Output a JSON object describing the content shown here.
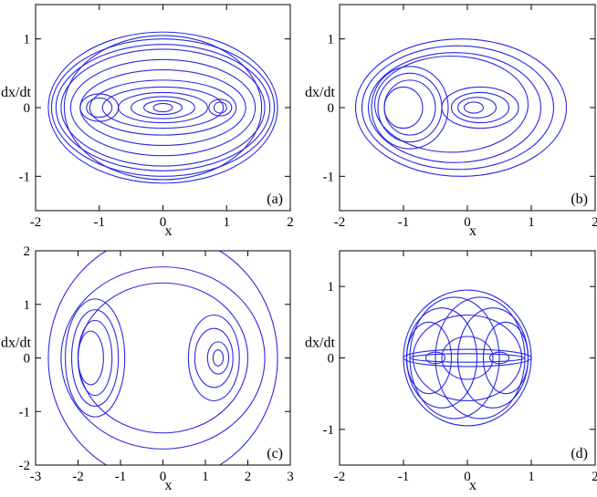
{
  "chart_data": [
    {
      "type": "line",
      "panel_label": "(a)",
      "xlabel": "x",
      "ylabel": "dx/dt",
      "xlim": [
        -2,
        2
      ],
      "ylim": [
        -1.5,
        1.5
      ],
      "xticks": [
        "-2",
        "-1",
        "0",
        "1",
        "2"
      ],
      "yticks": [
        "-1",
        "0",
        "1"
      ],
      "loops": [
        {
          "cx": 0,
          "cy": 0,
          "rx": 1.8,
          "ry": 1.1
        },
        {
          "cx": 0,
          "cy": 0,
          "rx": 1.75,
          "ry": 1.0
        },
        {
          "cx": 0,
          "cy": 0,
          "rx": 1.68,
          "ry": 0.92
        },
        {
          "cx": 0,
          "cy": 0,
          "rx": 1.6,
          "ry": 0.85
        },
        {
          "cx": 0,
          "cy": 0,
          "rx": 1.55,
          "ry": 1.05
        },
        {
          "cx": 0,
          "cy": 0,
          "rx": 1.45,
          "ry": 0.7
        },
        {
          "cx": 0,
          "cy": 0,
          "rx": 1.3,
          "ry": 0.55
        },
        {
          "cx": 0,
          "cy": 0,
          "rx": 1.15,
          "ry": 0.4
        },
        {
          "cx": 0,
          "cy": 0,
          "rx": 0.95,
          "ry": 0.3
        },
        {
          "cx": 0,
          "cy": 0,
          "rx": 0.7,
          "ry": 0.22
        },
        {
          "cx": 0,
          "cy": 0,
          "rx": 0.5,
          "ry": 0.16
        },
        {
          "cx": 0,
          "cy": 0,
          "rx": 0.3,
          "ry": 0.1
        },
        {
          "cx": 0,
          "cy": 0,
          "rx": 0.15,
          "ry": 0.06
        },
        {
          "cx": -1.0,
          "cy": 0,
          "rx": 0.3,
          "ry": 0.2
        },
        {
          "cx": -1.0,
          "cy": 0,
          "rx": 0.2,
          "ry": 0.14
        },
        {
          "cx": 0.9,
          "cy": 0,
          "rx": 0.18,
          "ry": 0.12
        },
        {
          "cx": 0.9,
          "cy": 0,
          "rx": 0.1,
          "ry": 0.08
        }
      ]
    },
    {
      "type": "line",
      "panel_label": "(b)",
      "xlabel": "x",
      "ylabel": "dx/dt",
      "xlim": [
        -2,
        2
      ],
      "ylim": [
        -1.5,
        1.5
      ],
      "xticks": [
        "-2",
        "-1",
        "0",
        "1",
        "2"
      ],
      "yticks": [
        "-1",
        "0",
        "1"
      ],
      "loops": [
        {
          "cx": -0.1,
          "cy": 0,
          "rx": 1.65,
          "ry": 1.0
        },
        {
          "cx": -0.15,
          "cy": 0,
          "rx": 1.5,
          "ry": 0.9
        },
        {
          "cx": -0.2,
          "cy": 0,
          "rx": 1.35,
          "ry": 0.8
        },
        {
          "cx": -0.25,
          "cy": 0.05,
          "rx": 1.2,
          "ry": 0.7
        },
        {
          "cx": -0.9,
          "cy": 0,
          "rx": 0.6,
          "ry": 0.6
        },
        {
          "cx": -0.9,
          "cy": 0,
          "rx": 0.5,
          "ry": 0.5
        },
        {
          "cx": -0.9,
          "cy": 0,
          "rx": 0.4,
          "ry": 0.4
        },
        {
          "cx": -1.0,
          "cy": 0,
          "rx": 0.3,
          "ry": 0.3
        },
        {
          "cx": 0.2,
          "cy": 0,
          "rx": 0.6,
          "ry": 0.3
        },
        {
          "cx": 0.2,
          "cy": 0,
          "rx": 0.45,
          "ry": 0.22
        },
        {
          "cx": 0.15,
          "cy": 0,
          "rx": 0.3,
          "ry": 0.15
        },
        {
          "cx": 0.1,
          "cy": 0,
          "rx": 0.15,
          "ry": 0.08
        }
      ]
    },
    {
      "type": "line",
      "panel_label": "(c)",
      "xlabel": "x",
      "ylabel": "dx/dt",
      "xlim": [
        -3,
        3
      ],
      "ylim": [
        -2,
        2
      ],
      "xticks": [
        "-3",
        "-2",
        "-1",
        "0",
        "1",
        "2",
        "3"
      ],
      "yticks": [
        "-2",
        "-1",
        "0",
        "1",
        "2"
      ],
      "loops": [
        {
          "cx": 0,
          "cy": 0,
          "rx": 2.7,
          "ry": 2.3
        },
        {
          "cx": 0,
          "cy": 0,
          "rx": 2.4,
          "ry": 1.7
        },
        {
          "cx": 0,
          "cy": 0,
          "rx": 2.0,
          "ry": 1.4
        },
        {
          "cx": -1.6,
          "cy": 0,
          "rx": 0.7,
          "ry": 1.1
        },
        {
          "cx": -1.6,
          "cy": 0,
          "rx": 0.55,
          "ry": 0.9
        },
        {
          "cx": -1.6,
          "cy": 0,
          "rx": 0.4,
          "ry": 0.7
        },
        {
          "cx": -1.7,
          "cy": 0,
          "rx": 0.3,
          "ry": 0.5
        },
        {
          "cx": 1.2,
          "cy": 0,
          "rx": 0.6,
          "ry": 0.8
        },
        {
          "cx": 1.2,
          "cy": 0,
          "rx": 0.45,
          "ry": 0.55
        },
        {
          "cx": 1.3,
          "cy": 0,
          "rx": 0.25,
          "ry": 0.3
        },
        {
          "cx": 1.3,
          "cy": 0,
          "rx": 0.12,
          "ry": 0.15
        }
      ]
    },
    {
      "type": "line",
      "panel_label": "(d)",
      "xlabel": "x",
      "ylabel": "dx/dt",
      "xlim": [
        -2,
        2
      ],
      "ylim": [
        -1.5,
        1.5
      ],
      "xticks": [
        "-2",
        "-1",
        "0",
        "1",
        "2"
      ],
      "yticks": [
        "-1",
        "0",
        "1"
      ],
      "loops": [
        {
          "cx": 0,
          "cy": 0,
          "rx": 1.0,
          "ry": 0.95
        },
        {
          "cx": -0.2,
          "cy": 0,
          "rx": 0.7,
          "ry": 0.85
        },
        {
          "cx": 0.2,
          "cy": 0,
          "rx": 0.7,
          "ry": 0.85
        },
        {
          "cx": -0.4,
          "cy": 0,
          "rx": 0.55,
          "ry": 0.7
        },
        {
          "cx": 0.4,
          "cy": 0,
          "rx": 0.55,
          "ry": 0.7
        },
        {
          "cx": 0,
          "cy": 0,
          "rx": 0.85,
          "ry": 0.6
        },
        {
          "cx": -0.6,
          "cy": 0,
          "rx": 0.35,
          "ry": 0.5
        },
        {
          "cx": 0.6,
          "cy": 0,
          "rx": 0.35,
          "ry": 0.5
        },
        {
          "cx": 0,
          "cy": 0,
          "rx": 1.0,
          "ry": 0.12
        },
        {
          "cx": 0,
          "cy": 0,
          "rx": 0.9,
          "ry": 0.06
        },
        {
          "cx": -0.5,
          "cy": 0,
          "rx": 0.15,
          "ry": 0.08
        },
        {
          "cx": 0.5,
          "cy": 0,
          "rx": 0.15,
          "ry": 0.08
        },
        {
          "cx": 0,
          "cy": 0,
          "rx": 0.4,
          "ry": 0.3
        }
      ]
    }
  ]
}
